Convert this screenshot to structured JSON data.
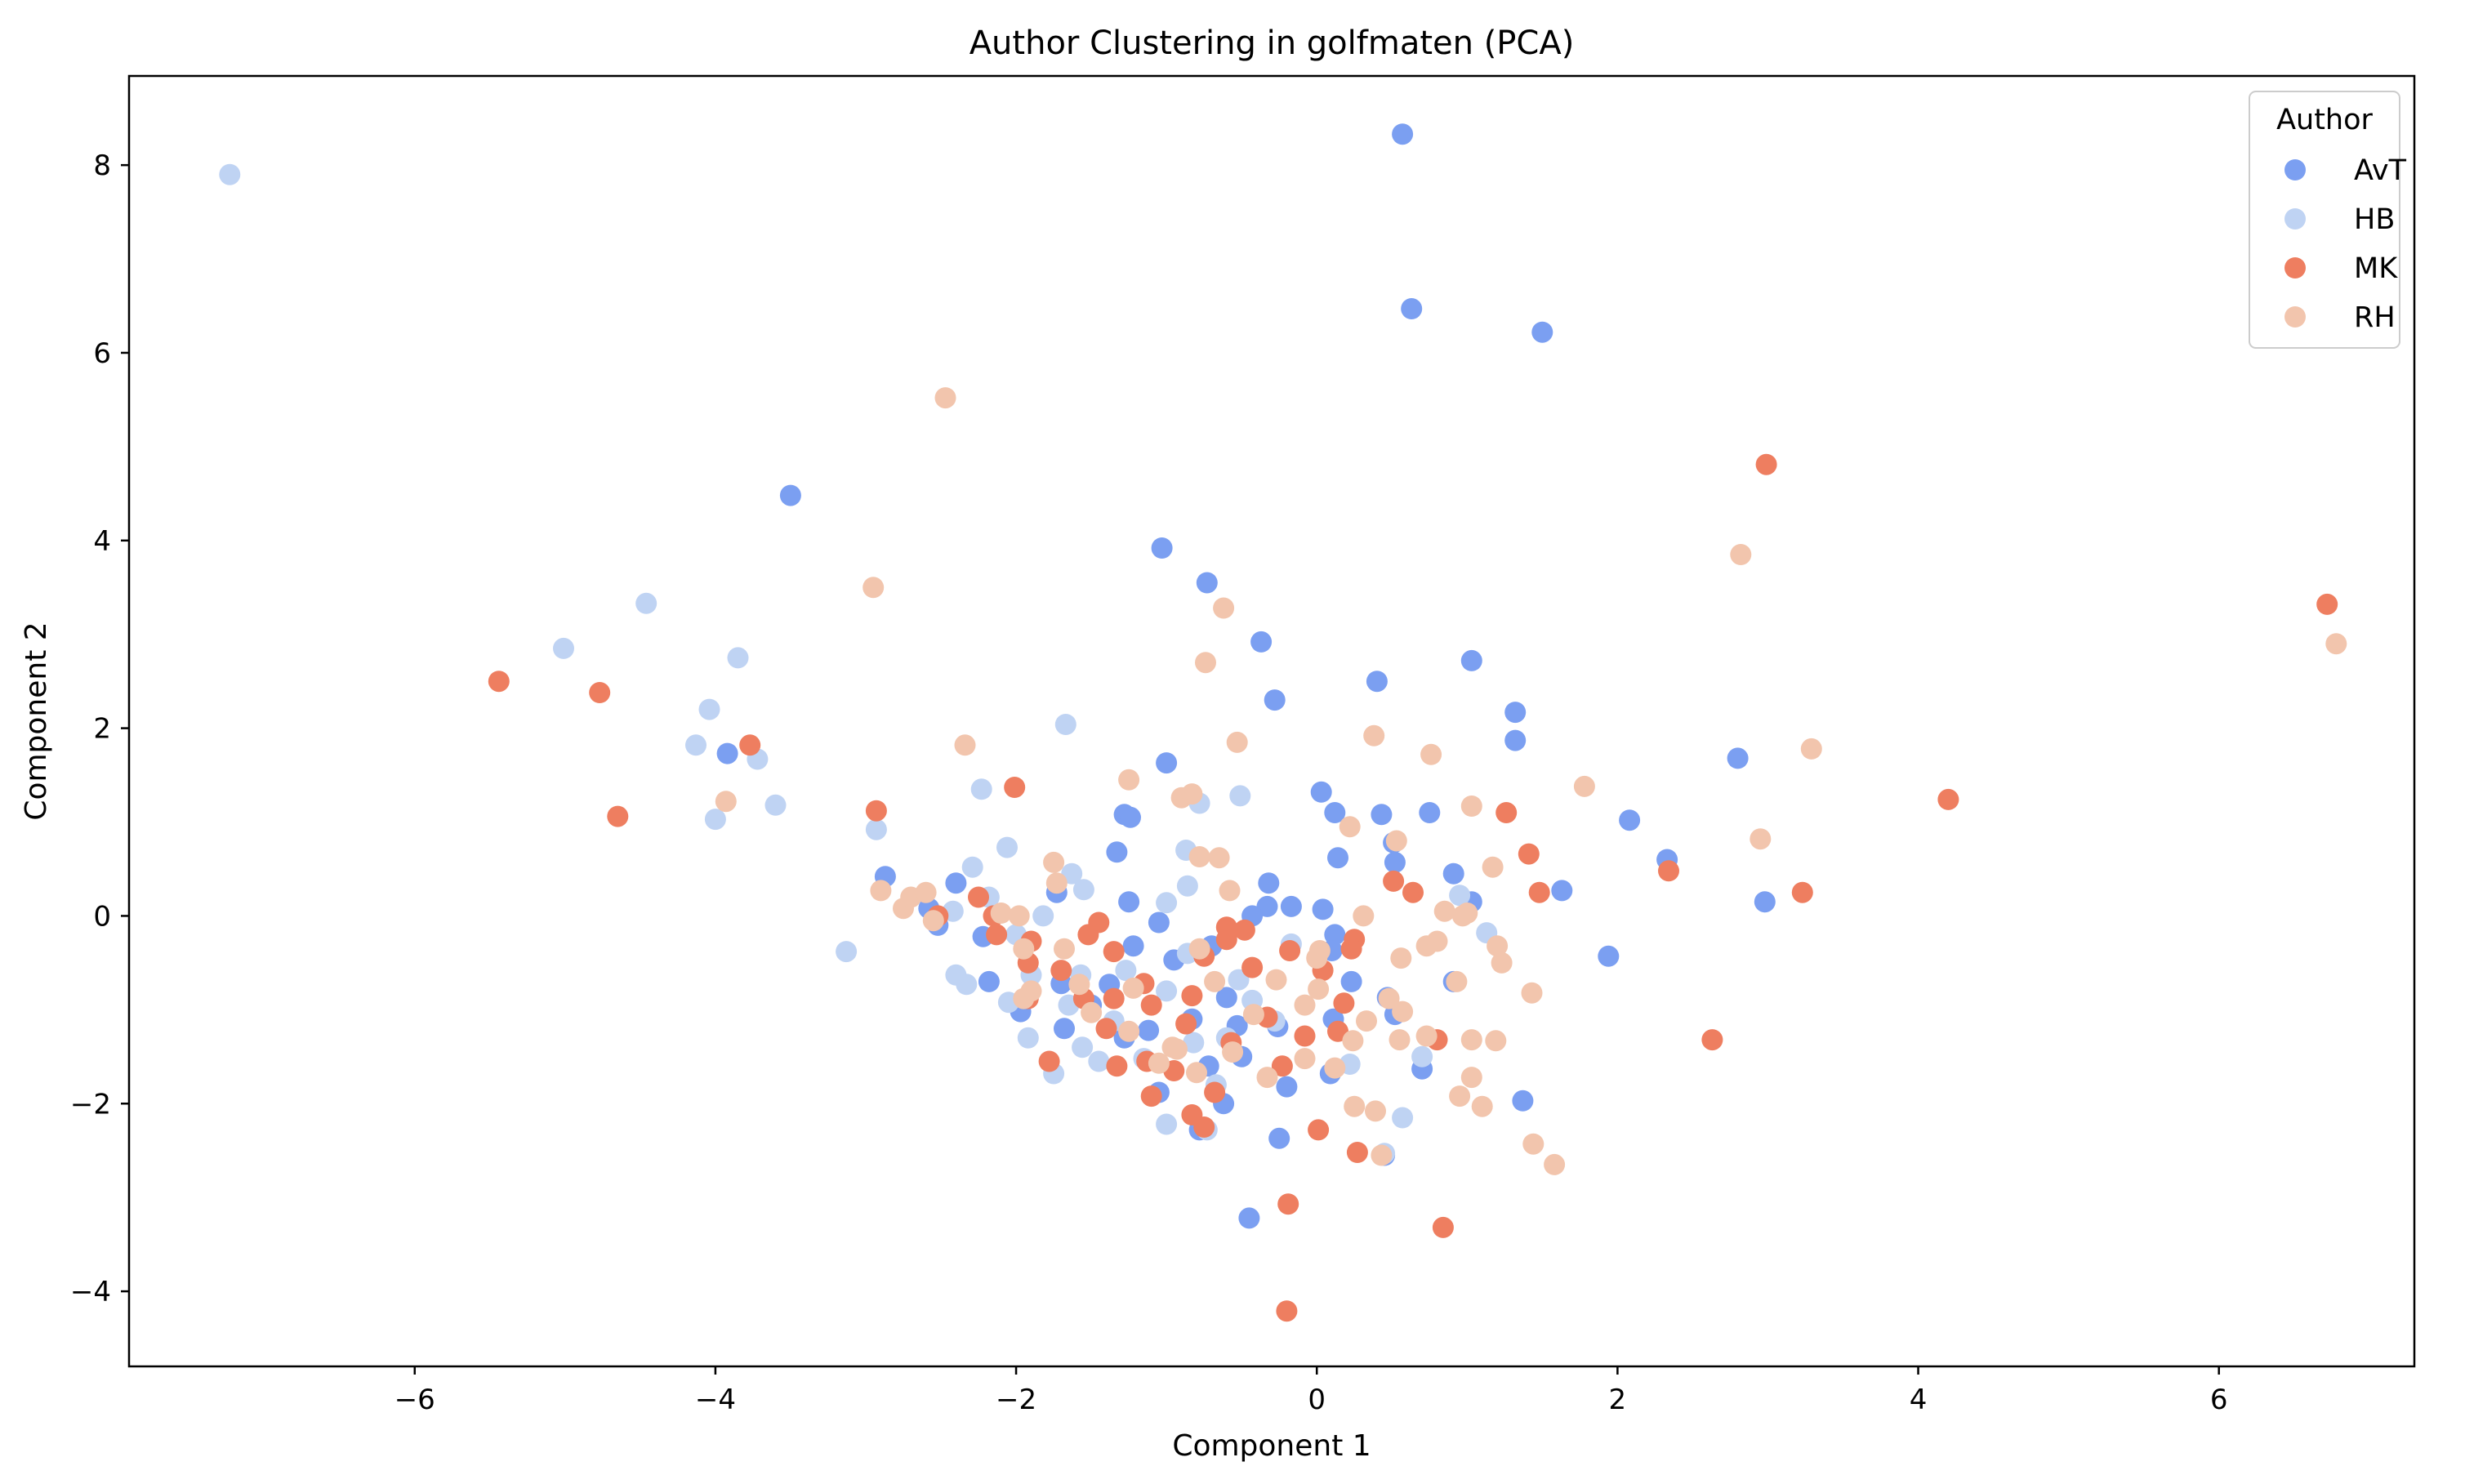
{
  "chart_data": {
    "type": "scatter",
    "title": "Author Clustering in golfmaten (PCA)",
    "xlabel": "Component 1",
    "ylabel": "Component 2",
    "xlim": [
      -7.9,
      7.3
    ],
    "ylim": [
      -4.8,
      8.95
    ],
    "xticks": [
      -6,
      -4,
      -2,
      0,
      2,
      4,
      6
    ],
    "yticks": [
      -4,
      -2,
      0,
      2,
      4,
      6,
      8
    ],
    "xtick_labels": [
      "−6",
      "−4",
      "−2",
      "0",
      "2",
      "4",
      "6"
    ],
    "ytick_labels": [
      "−4",
      "−2",
      "0",
      "2",
      "4",
      "6",
      "8"
    ],
    "grid": false,
    "legend": {
      "title": "Author",
      "position": "top-right"
    },
    "series": [
      {
        "name": "AvT",
        "color": "#7b9ff1",
        "points": [
          [
            0.57,
            8.33
          ],
          [
            0.63,
            6.47
          ],
          [
            1.5,
            6.22
          ],
          [
            -3.5,
            4.48
          ],
          [
            -1.03,
            3.92
          ],
          [
            -0.73,
            3.55
          ],
          [
            -0.37,
            2.92
          ],
          [
            1.03,
            2.72
          ],
          [
            -0.28,
            2.3
          ],
          [
            0.4,
            2.5
          ],
          [
            1.32,
            2.17
          ],
          [
            1.32,
            1.87
          ],
          [
            -3.92,
            1.73
          ],
          [
            -1.0,
            1.63
          ],
          [
            0.03,
            1.32
          ],
          [
            0.12,
            1.1
          ],
          [
            0.43,
            1.08
          ],
          [
            0.75,
            1.1
          ],
          [
            -1.28,
            1.08
          ],
          [
            -1.24,
            1.05
          ],
          [
            2.08,
            1.02
          ],
          [
            2.8,
            1.68
          ],
          [
            -1.33,
            0.68
          ],
          [
            0.14,
            0.62
          ],
          [
            0.51,
            0.78
          ],
          [
            0.52,
            0.57
          ],
          [
            2.33,
            0.6
          ],
          [
            -2.87,
            0.42
          ],
          [
            -2.4,
            0.35
          ],
          [
            0.91,
            0.45
          ],
          [
            1.63,
            0.27
          ],
          [
            2.98,
            0.15
          ],
          [
            -0.32,
            0.35
          ],
          [
            -0.33,
            0.1
          ],
          [
            -0.17,
            0.1
          ],
          [
            0.04,
            0.07
          ],
          [
            1.03,
            0.15
          ],
          [
            -1.25,
            0.15
          ],
          [
            -2.58,
            0.08
          ],
          [
            -2.52,
            -0.1
          ],
          [
            -1.05,
            -0.07
          ],
          [
            -0.43,
            0.0
          ],
          [
            0.12,
            -0.2
          ],
          [
            1.94,
            -0.43
          ],
          [
            -2.22,
            -0.22
          ],
          [
            -1.73,
            0.25
          ],
          [
            -1.22,
            -0.32
          ],
          [
            -0.95,
            -0.47
          ],
          [
            -0.7,
            -0.32
          ],
          [
            0.1,
            -0.37
          ],
          [
            -2.18,
            -0.7
          ],
          [
            -1.7,
            -0.72
          ],
          [
            -1.38,
            -0.73
          ],
          [
            -0.6,
            -0.87
          ],
          [
            0.23,
            -0.7
          ],
          [
            0.47,
            -0.87
          ],
          [
            0.91,
            -0.7
          ],
          [
            -1.97,
            -1.02
          ],
          [
            -1.5,
            -0.95
          ],
          [
            -1.12,
            -1.22
          ],
          [
            -0.83,
            -1.1
          ],
          [
            -0.53,
            -1.17
          ],
          [
            -0.26,
            -1.18
          ],
          [
            0.11,
            -1.1
          ],
          [
            0.52,
            -1.05
          ],
          [
            -1.68,
            -1.2
          ],
          [
            -1.28,
            -1.3
          ],
          [
            -0.72,
            -1.6
          ],
          [
            -0.5,
            -1.5
          ],
          [
            0.09,
            -1.68
          ],
          [
            0.7,
            -1.63
          ],
          [
            1.37,
            -1.97
          ],
          [
            -1.05,
            -1.88
          ],
          [
            -0.62,
            -2.0
          ],
          [
            -0.25,
            -2.37
          ],
          [
            -0.2,
            -1.82
          ],
          [
            0.45,
            -2.55
          ],
          [
            -0.45,
            -3.22
          ],
          [
            -0.78,
            -2.28
          ]
        ]
      },
      {
        "name": "HB",
        "color": "#bfd3f3",
        "points": [
          [
            -7.23,
            7.9
          ],
          [
            -4.46,
            3.33
          ],
          [
            -5.01,
            2.85
          ],
          [
            -3.85,
            2.75
          ],
          [
            -4.04,
            2.2
          ],
          [
            -4.13,
            1.82
          ],
          [
            -3.72,
            1.67
          ],
          [
            -3.6,
            1.18
          ],
          [
            -4.0,
            1.03
          ],
          [
            -2.93,
            0.92
          ],
          [
            -1.67,
            2.04
          ],
          [
            -2.23,
            1.35
          ],
          [
            -0.78,
            1.2
          ],
          [
            -0.51,
            1.28
          ],
          [
            -2.06,
            0.73
          ],
          [
            -0.87,
            0.7
          ],
          [
            -1.63,
            0.45
          ],
          [
            -2.29,
            0.52
          ],
          [
            -1.55,
            0.28
          ],
          [
            -1.0,
            0.14
          ],
          [
            -2.18,
            0.2
          ],
          [
            -1.82,
            0.0
          ],
          [
            -2.0,
            -0.2
          ],
          [
            -0.86,
            0.32
          ],
          [
            0.95,
            0.22
          ],
          [
            1.13,
            -0.18
          ],
          [
            -3.13,
            -0.38
          ],
          [
            -2.4,
            -0.63
          ],
          [
            -2.33,
            -0.73
          ],
          [
            -1.9,
            -0.63
          ],
          [
            -1.57,
            -0.63
          ],
          [
            -1.27,
            -0.58
          ],
          [
            -0.86,
            -0.4
          ],
          [
            -0.52,
            -0.68
          ],
          [
            -2.05,
            -0.92
          ],
          [
            -1.65,
            -0.95
          ],
          [
            -1.35,
            -1.12
          ],
          [
            -1.0,
            -0.8
          ],
          [
            -0.43,
            -0.9
          ],
          [
            -0.17,
            -0.3
          ],
          [
            -1.92,
            -1.3
          ],
          [
            -1.56,
            -1.4
          ],
          [
            -1.45,
            -1.55
          ],
          [
            -1.15,
            -1.52
          ],
          [
            -0.82,
            -1.35
          ],
          [
            -0.6,
            -1.3
          ],
          [
            -0.28,
            -1.12
          ],
          [
            -1.75,
            -1.68
          ],
          [
            -1.0,
            -2.22
          ],
          [
            -0.73,
            -2.28
          ],
          [
            0.22,
            -1.58
          ],
          [
            0.57,
            -2.15
          ],
          [
            0.45,
            -2.53
          ],
          [
            0.7,
            -1.5
          ],
          [
            -0.67,
            -1.8
          ],
          [
            -2.42,
            0.05
          ]
        ]
      },
      {
        "name": "MK",
        "color": "#ee7e60",
        "points": [
          [
            2.99,
            4.81
          ],
          [
            6.72,
            3.32
          ],
          [
            4.2,
            1.24
          ],
          [
            -5.44,
            2.5
          ],
          [
            -4.77,
            2.38
          ],
          [
            -4.65,
            1.06
          ],
          [
            -3.77,
            1.82
          ],
          [
            -2.93,
            1.12
          ],
          [
            -2.01,
            1.37
          ],
          [
            1.26,
            1.1
          ],
          [
            1.41,
            0.66
          ],
          [
            2.34,
            0.48
          ],
          [
            3.23,
            0.25
          ],
          [
            1.48,
            0.25
          ],
          [
            0.64,
            0.25
          ],
          [
            -2.25,
            0.2
          ],
          [
            -2.15,
            0.0
          ],
          [
            -2.52,
            0.0
          ],
          [
            -1.45,
            -0.07
          ],
          [
            -0.6,
            -0.12
          ],
          [
            -0.48,
            -0.15
          ],
          [
            0.25,
            -0.25
          ],
          [
            0.23,
            -0.35
          ],
          [
            0.51,
            0.37
          ],
          [
            -2.13,
            -0.2
          ],
          [
            -1.9,
            -0.27
          ],
          [
            -1.52,
            -0.2
          ],
          [
            -1.35,
            -0.38
          ],
          [
            -0.75,
            -0.43
          ],
          [
            -0.6,
            -0.25
          ],
          [
            -0.18,
            -0.37
          ],
          [
            -1.92,
            -0.5
          ],
          [
            -1.7,
            -0.58
          ],
          [
            -1.15,
            -0.72
          ],
          [
            -0.43,
            -0.55
          ],
          [
            -1.92,
            -0.88
          ],
          [
            -1.55,
            -0.88
          ],
          [
            -1.35,
            -0.88
          ],
          [
            -1.1,
            -0.95
          ],
          [
            -0.83,
            -0.85
          ],
          [
            -0.33,
            -1.08
          ],
          [
            0.18,
            -0.93
          ],
          [
            0.04,
            -0.58
          ],
          [
            -1.78,
            -1.55
          ],
          [
            -1.4,
            -1.2
          ],
          [
            -1.33,
            -1.6
          ],
          [
            -1.13,
            -1.55
          ],
          [
            -0.87,
            -1.15
          ],
          [
            -0.57,
            -1.35
          ],
          [
            -0.08,
            -1.28
          ],
          [
            0.14,
            -1.23
          ],
          [
            0.8,
            -1.32
          ],
          [
            -1.1,
            -1.92
          ],
          [
            -0.95,
            -1.65
          ],
          [
            -0.83,
            -2.12
          ],
          [
            -0.75,
            -2.25
          ],
          [
            -0.68,
            -1.88
          ],
          [
            -0.23,
            -1.6
          ],
          [
            0.01,
            -2.28
          ],
          [
            0.27,
            -2.52
          ],
          [
            -0.19,
            -3.07
          ],
          [
            0.84,
            -3.32
          ],
          [
            -0.2,
            -4.21
          ],
          [
            2.63,
            -1.32
          ]
        ]
      },
      {
        "name": "RH",
        "color": "#f2c5ad",
        "points": [
          [
            -2.47,
            5.52
          ],
          [
            2.82,
            3.85
          ],
          [
            6.78,
            2.9
          ],
          [
            -2.95,
            3.5
          ],
          [
            -0.62,
            3.28
          ],
          [
            -0.74,
            2.7
          ],
          [
            -2.34,
            1.82
          ],
          [
            -0.53,
            1.85
          ],
          [
            0.38,
            1.92
          ],
          [
            0.76,
            1.72
          ],
          [
            1.78,
            1.38
          ],
          [
            3.29,
            1.78
          ],
          [
            -3.93,
            1.22
          ],
          [
            -1.25,
            1.45
          ],
          [
            -0.9,
            1.26
          ],
          [
            -0.83,
            1.3
          ],
          [
            1.03,
            1.17
          ],
          [
            2.95,
            0.82
          ],
          [
            -0.78,
            0.63
          ],
          [
            -0.65,
            0.62
          ],
          [
            0.53,
            0.8
          ],
          [
            0.22,
            0.95
          ],
          [
            1.17,
            0.52
          ],
          [
            -1.75,
            0.57
          ],
          [
            -2.9,
            0.27
          ],
          [
            -2.75,
            0.08
          ],
          [
            -2.7,
            0.2
          ],
          [
            -2.6,
            0.25
          ],
          [
            -2.55,
            -0.05
          ],
          [
            -2.1,
            0.03
          ],
          [
            -1.98,
            0.0
          ],
          [
            -1.73,
            0.35
          ],
          [
            -0.58,
            0.27
          ],
          [
            0.31,
            0.0
          ],
          [
            0.85,
            0.05
          ],
          [
            0.97,
            0.0
          ],
          [
            1.0,
            0.03
          ],
          [
            -1.95,
            -0.35
          ],
          [
            -1.68,
            -0.35
          ],
          [
            -1.22,
            -0.77
          ],
          [
            -0.78,
            -0.35
          ],
          [
            -0.27,
            -0.68
          ],
          [
            0.0,
            -0.45
          ],
          [
            0.02,
            -0.37
          ],
          [
            0.56,
            -0.45
          ],
          [
            0.73,
            -0.32
          ],
          [
            0.8,
            -0.27
          ],
          [
            1.2,
            -0.32
          ],
          [
            1.23,
            -0.5
          ],
          [
            1.43,
            -0.82
          ],
          [
            -1.9,
            -0.8
          ],
          [
            -1.58,
            -0.73
          ],
          [
            -1.25,
            -1.23
          ],
          [
            -0.96,
            -1.4
          ],
          [
            -0.68,
            -0.7
          ],
          [
            -0.42,
            -1.05
          ],
          [
            -0.08,
            -0.95
          ],
          [
            0.01,
            -0.78
          ],
          [
            0.33,
            -1.12
          ],
          [
            0.48,
            -0.88
          ],
          [
            0.57,
            -1.02
          ],
          [
            0.93,
            -0.7
          ],
          [
            -1.95,
            -0.88
          ],
          [
            -1.5,
            -1.03
          ],
          [
            -1.05,
            -1.57
          ],
          [
            -0.93,
            -1.42
          ],
          [
            -0.8,
            -1.67
          ],
          [
            -0.56,
            -1.45
          ],
          [
            -0.33,
            -1.72
          ],
          [
            -0.08,
            -1.52
          ],
          [
            0.12,
            -1.62
          ],
          [
            0.24,
            -1.33
          ],
          [
            0.55,
            -1.32
          ],
          [
            0.73,
            -1.28
          ],
          [
            1.03,
            -1.32
          ],
          [
            1.19,
            -1.33
          ],
          [
            1.03,
            -1.72
          ],
          [
            0.95,
            -1.92
          ],
          [
            1.1,
            -2.03
          ],
          [
            0.39,
            -2.08
          ],
          [
            0.25,
            -2.03
          ],
          [
            0.43,
            -2.55
          ],
          [
            1.44,
            -2.43
          ],
          [
            1.58,
            -2.65
          ]
        ]
      }
    ]
  }
}
